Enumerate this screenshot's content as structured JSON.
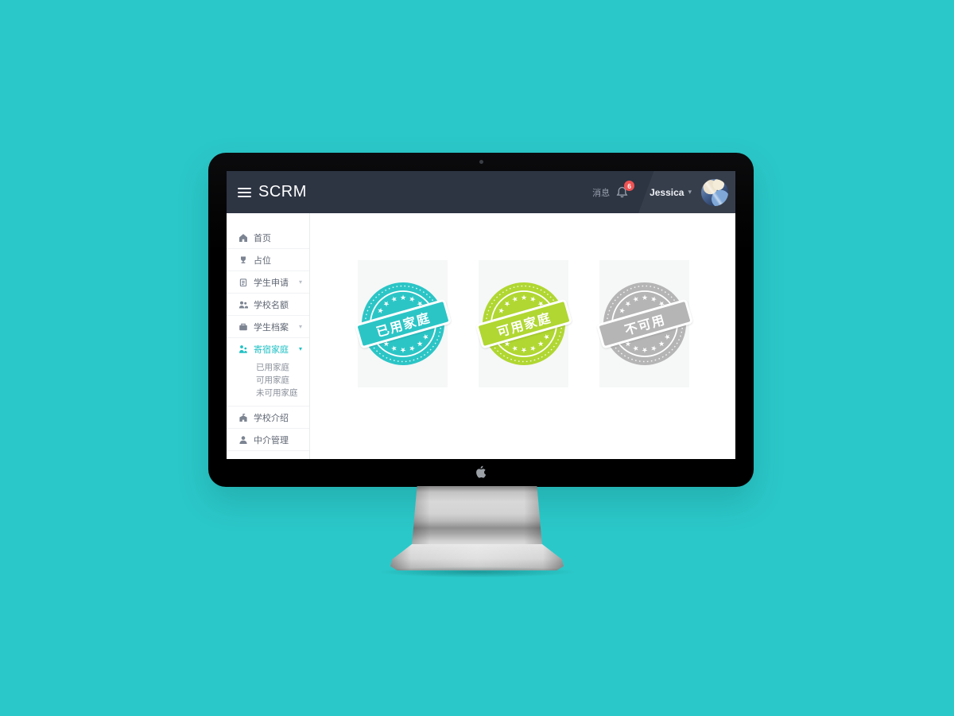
{
  "page": {
    "background": "#2bc8c9"
  },
  "header": {
    "brand": "SCRM",
    "messages_label": "消息",
    "notification_count": "6",
    "user_name": "Jessica"
  },
  "sidebar": {
    "items": [
      {
        "label": "首页"
      },
      {
        "label": "占位"
      },
      {
        "label": "学生申请"
      },
      {
        "label": "学校名额"
      },
      {
        "label": "学生档案"
      },
      {
        "label": "寄宿家庭"
      },
      {
        "label": "学校介绍"
      },
      {
        "label": "中介管理"
      }
    ],
    "host_family_children": [
      "已用家庭",
      "可用家庭",
      "未可用家庭"
    ]
  },
  "stamps": [
    {
      "label": "已用家庭",
      "color": "#2cc5c6"
    },
    {
      "label": "可用家庭",
      "color": "#b0d732"
    },
    {
      "label": "不可用",
      "color": "#b5b5b5"
    }
  ],
  "colors": {
    "accent": "#1fc0c4",
    "header_bg": "#2d3442",
    "badge": "#ef5253",
    "desktop_background": "#2bc8c9"
  }
}
